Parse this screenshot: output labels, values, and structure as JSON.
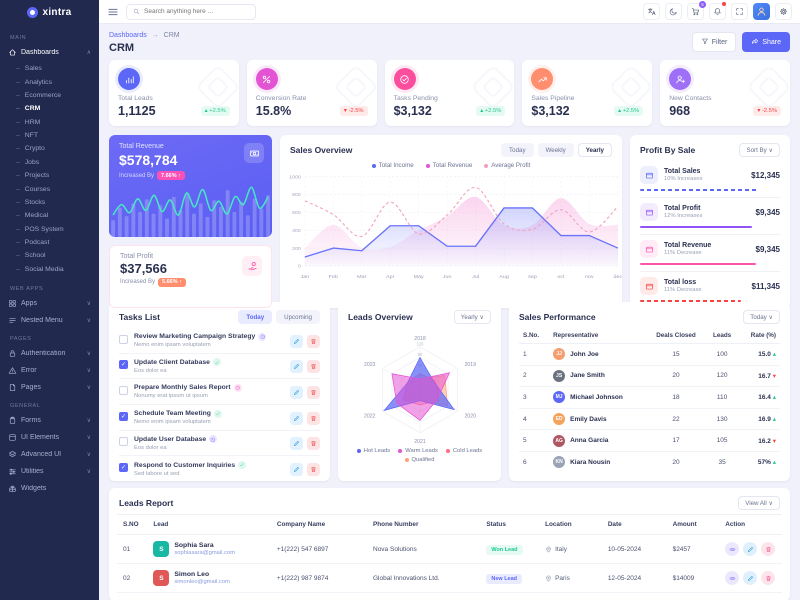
{
  "header": {
    "search_placeholder": "Search anything here ...",
    "cart_badge": "5"
  },
  "sidebar": {
    "logo_text": "xintra",
    "sections": [
      {
        "label": "MAIN",
        "items": [
          {
            "icon": "home",
            "label": "Dashboards",
            "chevron": "up",
            "active": true,
            "children": [
              "Sales",
              "Analytics",
              "Ecommerce",
              "CRM",
              "HRM",
              "NFT",
              "Crypto",
              "Jobs",
              "Projects",
              "Courses",
              "Stocks",
              "Medical",
              "POS System",
              "Podcast",
              "School",
              "Social Media"
            ],
            "active_child": "CRM"
          }
        ]
      },
      {
        "label": "WEB APPS",
        "items": [
          {
            "icon": "grid",
            "label": "Apps",
            "chevron": "down"
          },
          {
            "icon": "nested",
            "label": "Nested Menu",
            "chevron": "down"
          }
        ]
      },
      {
        "label": "PAGES",
        "items": [
          {
            "icon": "lock",
            "label": "Authentication",
            "chevron": "down"
          },
          {
            "icon": "alert",
            "label": "Error",
            "chevron": "down"
          },
          {
            "icon": "file",
            "label": "Pages",
            "chevron": "down"
          }
        ]
      },
      {
        "label": "GENERAL",
        "items": [
          {
            "icon": "clipboard",
            "label": "Forms",
            "chevron": "down"
          },
          {
            "icon": "box",
            "label": "UI Elements",
            "chevron": "down"
          },
          {
            "icon": "layers",
            "label": "Advanced UI",
            "chevron": "down"
          },
          {
            "icon": "sliders",
            "label": "Utilities",
            "chevron": "down"
          },
          {
            "icon": "gift",
            "label": "Widgets",
            "chevron": ""
          }
        ]
      }
    ]
  },
  "breadcrumb": {
    "items": [
      "Dashboards",
      "CRM"
    ]
  },
  "page_title": "CRM",
  "toolbar": {
    "filter_label": "Filter",
    "share_label": "Share"
  },
  "kpis": [
    {
      "label": "Total Leads",
      "value": "1,1125",
      "delta": "+2.5%",
      "dir": "up",
      "icon": "chart-bars",
      "color": "#5c67f7"
    },
    {
      "label": "Conversion Rate",
      "value": "15.8%",
      "delta": "-2.5%",
      "dir": "down",
      "icon": "percent",
      "color": "#e354d4"
    },
    {
      "label": "Tasks Pending",
      "value": "$3,132",
      "delta": "+2.5%",
      "dir": "up",
      "icon": "check-circle",
      "color": "#fb4f9e"
    },
    {
      "label": "Sales Pipeline",
      "value": "$3,132",
      "delta": "+2.5%",
      "dir": "up",
      "icon": "arrow-trend",
      "color": "#ff8e6f"
    },
    {
      "label": "New Contacts",
      "value": "968",
      "delta": "-2.5%",
      "dir": "down",
      "icon": "user-plus",
      "color": "#9e6ff7"
    }
  ],
  "revenue_card": {
    "label": "Total Revenue",
    "value": "$578,784",
    "sub": "Increased By",
    "badge": "7.66% ↑",
    "badge_color": "#fb50b5"
  },
  "profit_card": {
    "label": "Total Profit",
    "value": "$37,566",
    "sub": "Increased By",
    "badge": "5.66% ↑",
    "badge_color": "#ff8e6f"
  },
  "sales_overview": {
    "title": "Sales Overview",
    "tabs": [
      "Today",
      "Weekly",
      "Yearly"
    ],
    "active_tab": "Yearly"
  },
  "profit_by_sale": {
    "title": "Profit By Sale",
    "sort_label": "Sort By ∨",
    "items": [
      {
        "title": "Total Sales",
        "sub": "10% Increases",
        "amount": "$12,345",
        "color": "#5c67f7",
        "bar": 85,
        "dashed": true
      },
      {
        "title": "Total Profit",
        "sub": "12% Increases",
        "amount": "$9,345",
        "color": "#8e54f7",
        "bar": 80,
        "dashed": false
      },
      {
        "title": "Total Revenue",
        "sub": "11% Decrease",
        "amount": "$9,345",
        "color": "#fb54ad",
        "bar": 83,
        "dashed": false
      },
      {
        "title": "Total loss",
        "sub": "11% Decrease",
        "amount": "$11,345",
        "color": "#fb4242",
        "bar": 72,
        "dashed": true
      }
    ]
  },
  "tasks_list": {
    "title": "Tasks List",
    "tabs": [
      "Today",
      "Upcoming"
    ],
    "active_tab": "Today",
    "tasks": [
      {
        "title": "Review Marketing Campaign Strategy",
        "sub": "Nemo enim ipsam voluptatem",
        "checked": false,
        "badge": "clock",
        "badge_color": "violet"
      },
      {
        "title": "Update Client Database",
        "sub": "Eos dolor ea",
        "checked": true,
        "badge": "check",
        "badge_color": "green"
      },
      {
        "title": "Prepare Monthly Sales Report",
        "sub": "Nonumy erat ipsum ut ipsum",
        "checked": false,
        "badge": "clock",
        "badge_color": "pink"
      },
      {
        "title": "Schedule Team Meeting",
        "sub": "Nemo enim ipsam voluptatem",
        "checked": true,
        "badge": "check",
        "badge_color": "green"
      },
      {
        "title": "Update User Database",
        "sub": "Eos dolor ea",
        "checked": false,
        "badge": "clock",
        "badge_color": "violet"
      },
      {
        "title": "Respond to Customer Inquiries",
        "sub": "Sed labore ut sed",
        "checked": true,
        "badge": "check",
        "badge_color": "green"
      }
    ]
  },
  "leads_overview": {
    "title": "Leads Overview",
    "range_label": "Yearly ∨"
  },
  "sales_performance": {
    "title": "Sales Performance",
    "range_label": "Today ∨",
    "columns": [
      "S.No.",
      "Representative",
      "Deals Closed",
      "Leads",
      "Rate (%)"
    ],
    "rows": [
      {
        "sno": "1",
        "name": "John Joe",
        "deals": "15",
        "leads": "100",
        "rate": "15.0",
        "dir": "up",
        "avatar": "#f59e6f"
      },
      {
        "sno": "2",
        "name": "Jane Smith",
        "deals": "20",
        "leads": "120",
        "rate": "16.7",
        "dir": "down",
        "avatar": "#6b7280"
      },
      {
        "sno": "3",
        "name": "Michael Johnson",
        "deals": "18",
        "leads": "110",
        "rate": "16.4",
        "dir": "up",
        "avatar": "#5c67f7"
      },
      {
        "sno": "4",
        "name": "Emily Davis",
        "deals": "22",
        "leads": "130",
        "rate": "16.9",
        "dir": "up",
        "avatar": "#f5a25c"
      },
      {
        "sno": "5",
        "name": "Anna Garcia",
        "deals": "17",
        "leads": "105",
        "rate": "16.2",
        "dir": "down",
        "avatar": "#b05663"
      },
      {
        "sno": "6",
        "name": "Kiara Nousin",
        "deals": "20",
        "leads": "35",
        "rate": "57%",
        "dir": "up",
        "avatar": "#9aa3b5"
      }
    ]
  },
  "leads_report": {
    "title": "Leads Report",
    "view_all_label": "View All ∨",
    "columns": [
      "S.NO",
      "Lead",
      "Company Name",
      "Phone Number",
      "Status",
      "Location",
      "Date",
      "Amount",
      "Action"
    ],
    "rows": [
      {
        "sno": "01",
        "name": "Sophia Sara",
        "email": "sophiasara@gmail.com",
        "company_name_cell": "+1(222) 547 6897",
        "phone_number_cell": "Nova Solutions",
        "status": "Won Lead",
        "status_type": "success",
        "location": "Italy",
        "date": "10-05-2024",
        "amount": "$2457",
        "avatar": "#18b8a5"
      },
      {
        "sno": "02",
        "name": "Simon Leo",
        "email": "simonleo@gmail.com",
        "company_name_cell": "+1(222) 987 9874",
        "phone_number_cell": "Global Innovations Ltd.",
        "status": "New Lead",
        "status_type": "info",
        "location": "Paris",
        "date": "12-05-2024",
        "amount": "$14009",
        "avatar": "#e05757"
      }
    ]
  },
  "chart_data": [
    {
      "id": "sales_overview",
      "type": "line",
      "title": "Sales Overview",
      "x": [
        "Jan",
        "Feb",
        "Mar",
        "Apr",
        "May",
        "Jun",
        "Jul",
        "Aug",
        "sep",
        "oct",
        "nov",
        "dec"
      ],
      "ylim": [
        0,
        1000
      ],
      "yticks": [
        0,
        200,
        400,
        600,
        800,
        1000
      ],
      "grid": true,
      "legend_position": "top",
      "series": [
        {
          "name": "Total Income",
          "style": "line-area",
          "color": "#6a74f8",
          "dash": false,
          "values": [
            100,
            200,
            170,
            450,
            450,
            220,
            220,
            650,
            650,
            340,
            340,
            200
          ]
        },
        {
          "name": "Total Revenue",
          "style": "area",
          "color": "#f384d0",
          "dash": false,
          "values": [
            200,
            460,
            205,
            215,
            400,
            555,
            775,
            455,
            455,
            760,
            470,
            460
          ]
        },
        {
          "name": "Average Profit",
          "style": "line",
          "color": "#f2a0c0",
          "dash": true,
          "values": [
            730,
            575,
            330,
            715,
            360,
            570,
            880,
            470,
            410,
            630,
            380,
            665
          ]
        }
      ],
      "legend": [
        {
          "label": "Total Income",
          "color": "#5c67f7"
        },
        {
          "label": "Total Revenue",
          "color": "#e354d4"
        },
        {
          "label": "Average Profit",
          "color": "#f2a0c0"
        }
      ]
    },
    {
      "id": "leads_radar",
      "type": "radar",
      "title": "Leads Overview",
      "categories": [
        "2018",
        "2019",
        "2020",
        "2021",
        "2022",
        "2023"
      ],
      "max": 120,
      "ticks": [
        0,
        30,
        60,
        90,
        120
      ],
      "series": [
        {
          "name": "Hot Leads",
          "color": "#5c67f7",
          "fill": "rgba(92,103,247,0.72)",
          "values": [
            90,
            45,
            110,
            30,
            115,
            40
          ]
        },
        {
          "name": "Warm Leads",
          "color": "#e354d4",
          "fill": "rgba(227,84,212,0.55)",
          "values": [
            30,
            95,
            55,
            85,
            75,
            90
          ]
        },
        {
          "name": "Cold Leads",
          "color": "#ff6e7e",
          "fill": "rgba(255,110,126,0.38)",
          "values": [
            45,
            50,
            60,
            42,
            55,
            40
          ]
        },
        {
          "name": "Qualified",
          "color": "#ffa078",
          "fill": "rgba(255,160,120,0.50)",
          "values": [
            30,
            80,
            88,
            30,
            50,
            35
          ]
        }
      ]
    },
    {
      "id": "revenue_spark",
      "type": "line",
      "title": "Total Revenue sparkline",
      "line_color": "#47e7c3",
      "line": [
        35,
        52,
        38,
        62,
        42,
        68,
        40,
        60,
        34,
        72,
        48,
        78,
        42,
        58,
        36,
        66,
        52,
        82,
        46,
        64
      ],
      "bars": [
        20,
        35,
        25,
        40,
        30,
        45,
        28,
        38,
        22,
        48,
        32,
        52,
        28,
        40,
        24,
        44,
        36,
        56,
        30,
        42,
        26,
        46,
        34,
        50
      ]
    }
  ]
}
